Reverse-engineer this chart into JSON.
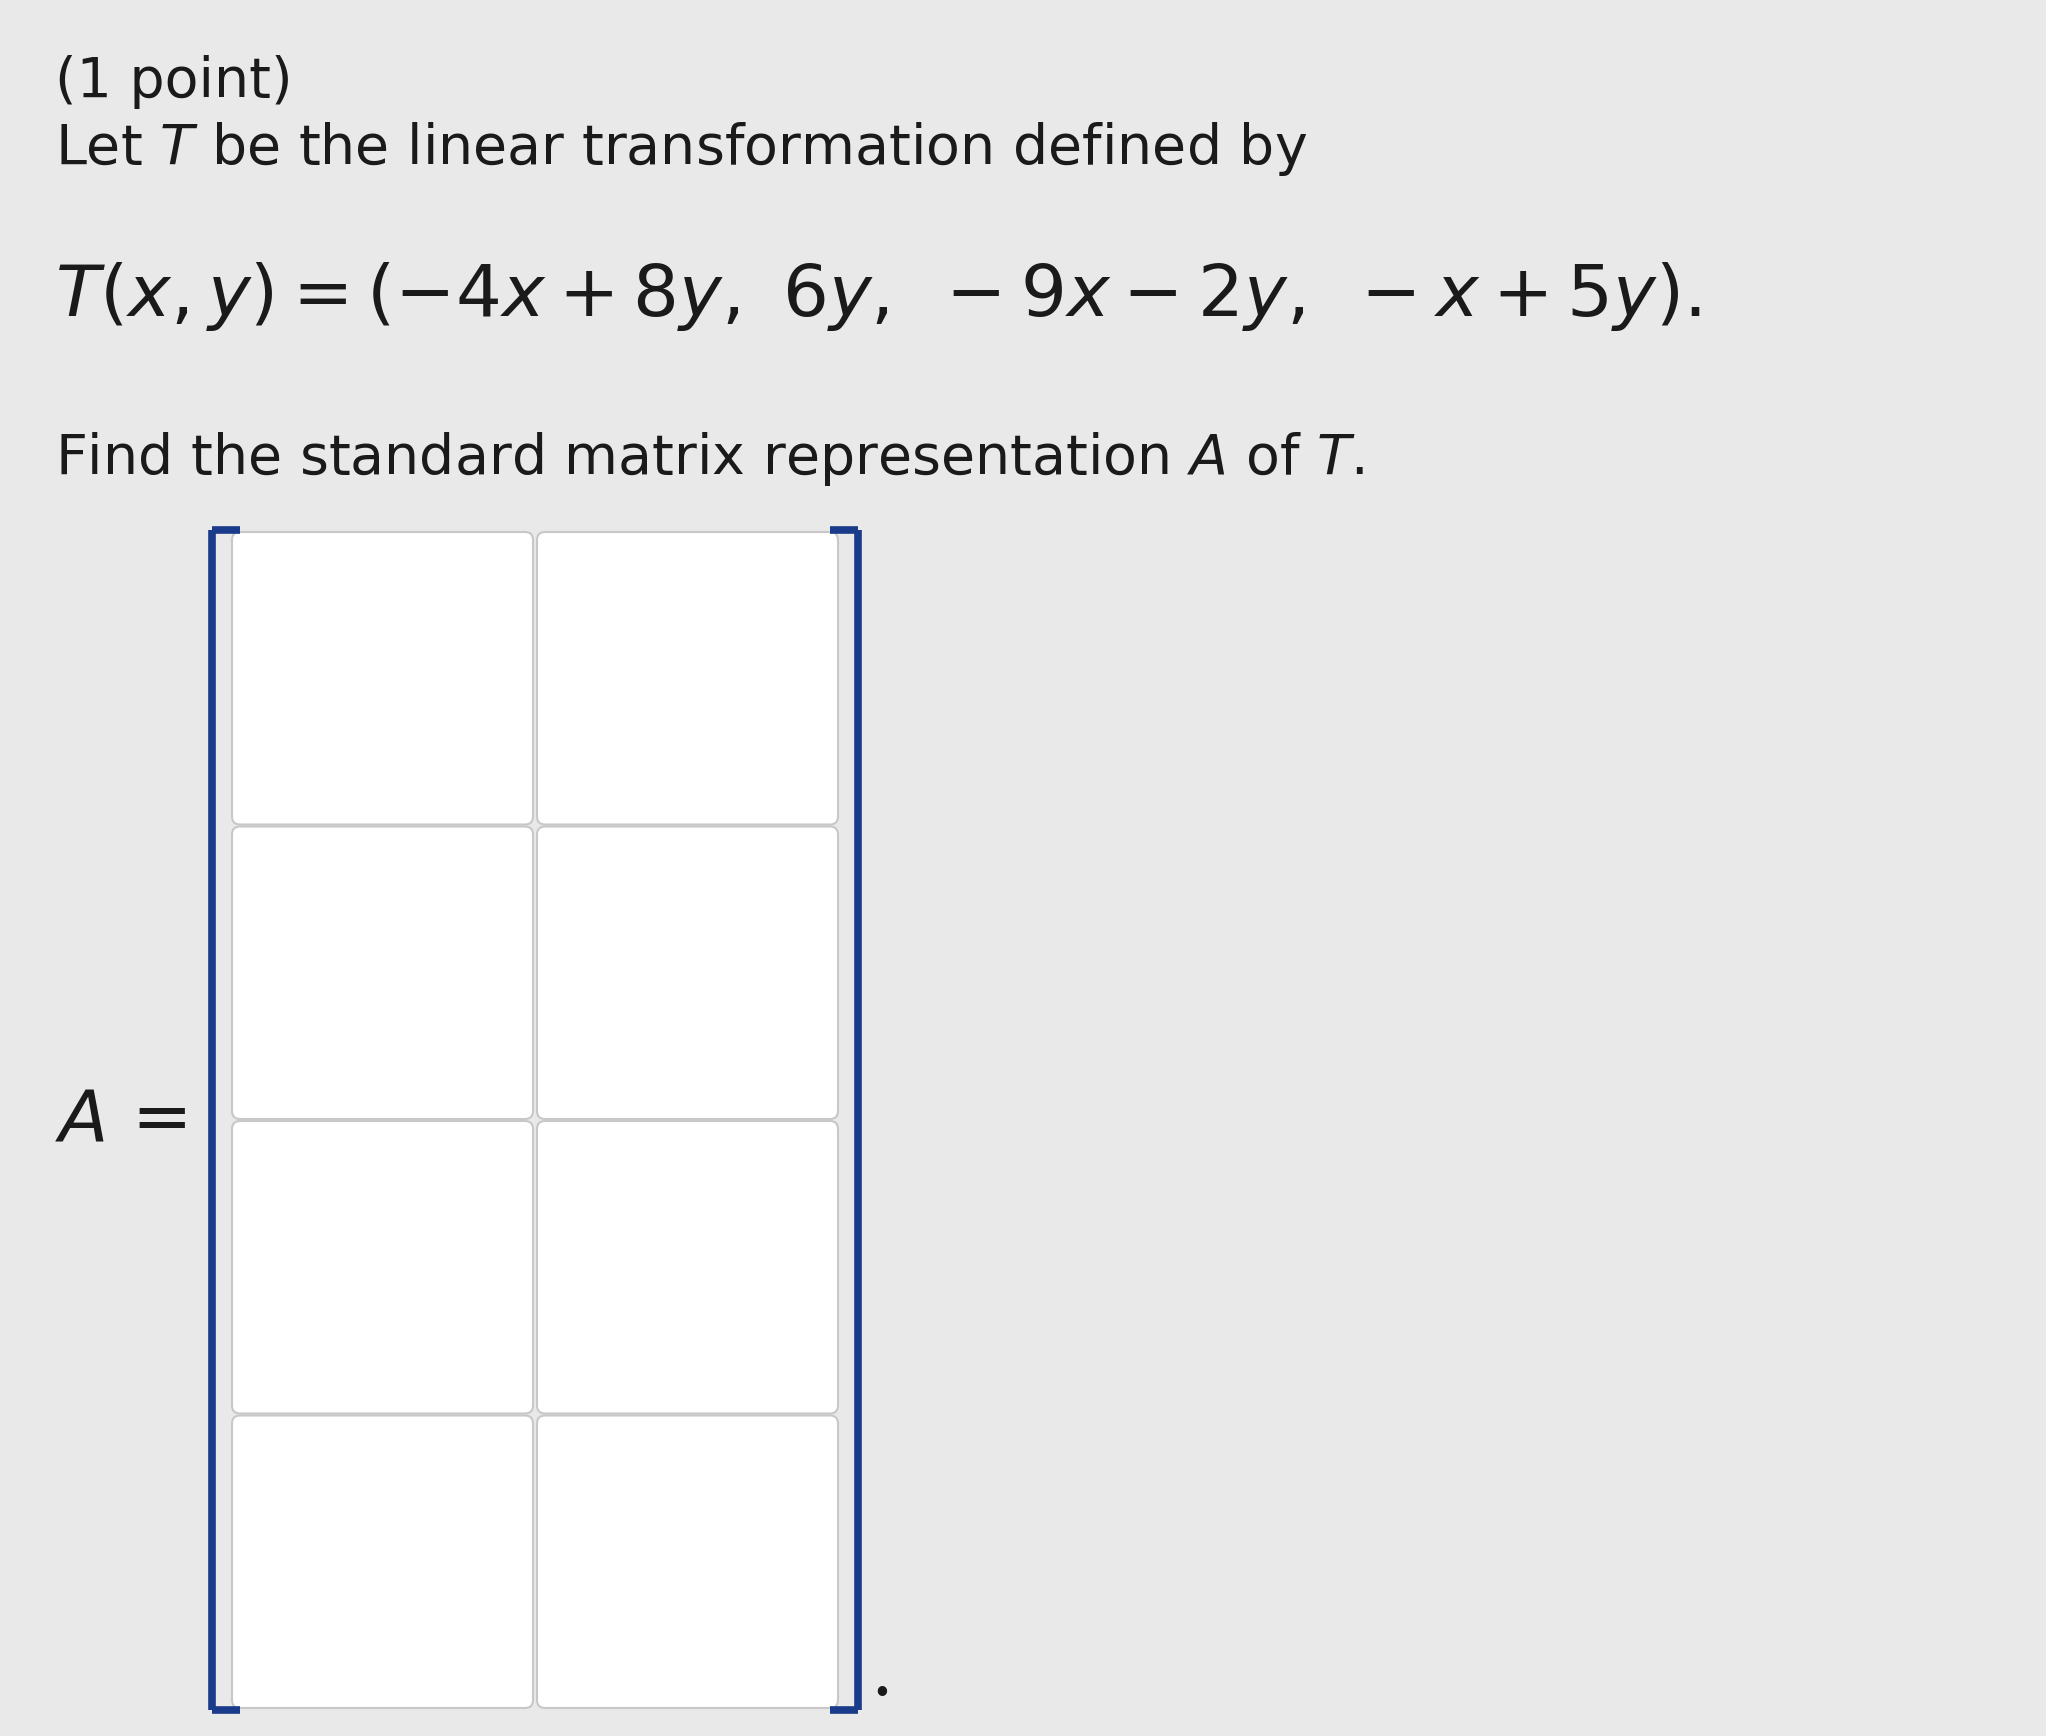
{
  "background_color": "#e9e9e9",
  "text_color": "#1a1a1a",
  "line1": "(1 point)",
  "line2_normal": "Let ",
  "line2_italic": "T",
  "line2_rest": " be the linear transformation defined by",
  "formula": "$T(x, y) = (-4x + 8y,\\ 6y,\\ -9x - 2y,\\ -x + 5y).$",
  "line3_normal": "Find the standard matrix representation ",
  "line3_A": "A",
  "line3_rest": " of ",
  "line3_T": "T",
  "line3_end": ".",
  "label_A_italic": "A",
  "label_eq": " =",
  "n_rows": 4,
  "n_cols": 2,
  "box_color": "#ffffff",
  "box_edge_color": "#c8c8c8",
  "bracket_color": "#1a3a8a",
  "font_size_body": 40,
  "font_size_formula": 52,
  "font_size_label": 52,
  "dot_size": 52
}
